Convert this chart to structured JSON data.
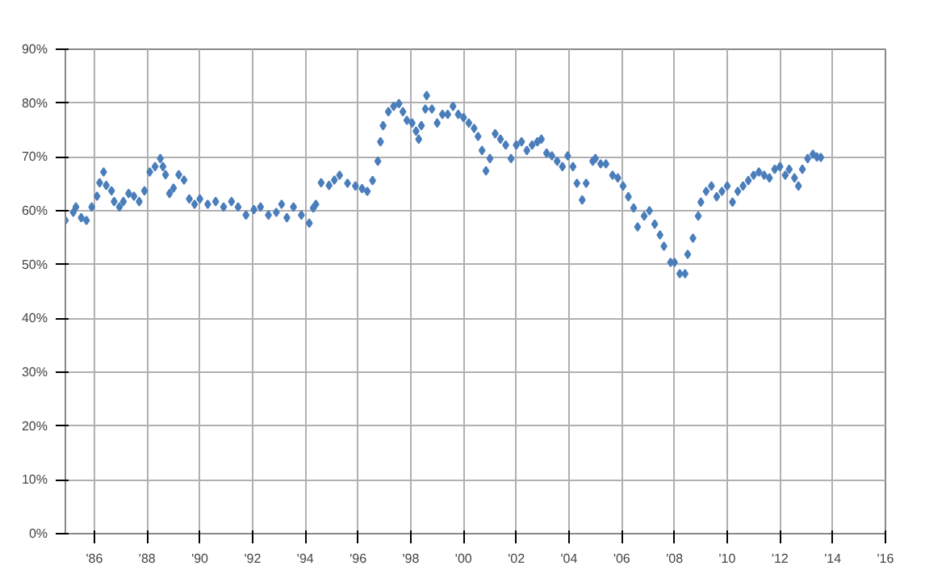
{
  "chart_data": {
    "type": "scatter",
    "marker": "diamond",
    "grid": true,
    "xlim": [
      1984.9,
      2016
    ],
    "xticks": [
      {
        "value": 1986,
        "label": "'86"
      },
      {
        "value": 1988,
        "label": "'88"
      },
      {
        "value": 1990,
        "label": "'90"
      },
      {
        "value": 1992,
        "label": "'92"
      },
      {
        "value": 1994,
        "label": "'94"
      },
      {
        "value": 1996,
        "label": "'96"
      },
      {
        "value": 1998,
        "label": "'98"
      },
      {
        "value": 2000,
        "label": "'00"
      },
      {
        "value": 2002,
        "label": "'02"
      },
      {
        "value": 2004,
        "label": "'04"
      },
      {
        "value": 2006,
        "label": "'06"
      },
      {
        "value": 2008,
        "label": "'08"
      },
      {
        "value": 2010,
        "label": "'10"
      },
      {
        "value": 2012,
        "label": "'12"
      },
      {
        "value": 2014,
        "label": "'14"
      },
      {
        "value": 2016,
        "label": "'16"
      }
    ],
    "ylim": [
      0,
      90
    ],
    "yticks": [
      {
        "value": 0,
        "label": "0%"
      },
      {
        "value": 10,
        "label": "10%"
      },
      {
        "value": 20,
        "label": "20%"
      },
      {
        "value": 30,
        "label": "30%"
      },
      {
        "value": 40,
        "label": "40%"
      },
      {
        "value": 50,
        "label": "50%"
      },
      {
        "value": 60,
        "label": "60%"
      },
      {
        "value": 70,
        "label": "70%"
      },
      {
        "value": 80,
        "label": "80%"
      },
      {
        "value": 90,
        "label": "90%"
      }
    ],
    "series": [
      {
        "color": "#4a7ebb",
        "x": [
          1984.9,
          1985.2,
          1985.3,
          1985.5,
          1985.7,
          1985.9,
          1986.1,
          1986.2,
          1986.35,
          1986.45,
          1986.65,
          1986.75,
          1986.95,
          1987.1,
          1987.3,
          1987.5,
          1987.7,
          1987.9,
          1988.1,
          1988.3,
          1988.5,
          1988.6,
          1988.7,
          1988.85,
          1989.0,
          1989.2,
          1989.4,
          1989.6,
          1989.8,
          1990.0,
          1990.3,
          1990.6,
          1990.9,
          1991.2,
          1991.45,
          1991.75,
          1992.05,
          1992.3,
          1992.6,
          1992.9,
          1993.1,
          1993.3,
          1993.55,
          1993.85,
          1994.15,
          1994.3,
          1994.4,
          1994.6,
          1994.9,
          1995.1,
          1995.3,
          1995.6,
          1995.9,
          1996.15,
          1996.35,
          1996.55,
          1996.75,
          1996.85,
          1996.95,
          1997.15,
          1997.35,
          1997.55,
          1997.7,
          1997.85,
          1998.05,
          1998.2,
          1998.3,
          1998.4,
          1998.55,
          1998.6,
          1998.8,
          1999.0,
          1999.2,
          1999.4,
          1999.6,
          1999.8,
          2000.0,
          2000.2,
          2000.4,
          2000.55,
          2000.7,
          2000.85,
          2001.0,
          2001.2,
          2001.4,
          2001.6,
          2001.8,
          2002.0,
          2002.2,
          2002.4,
          2002.6,
          2002.8,
          2002.95,
          2003.15,
          2003.35,
          2003.55,
          2003.75,
          2003.95,
          2004.15,
          2004.3,
          2004.5,
          2004.65,
          2004.9,
          2005.0,
          2005.2,
          2005.4,
          2005.65,
          2005.85,
          2006.05,
          2006.25,
          2006.45,
          2006.6,
          2006.85,
          2007.05,
          2007.25,
          2007.45,
          2007.6,
          2007.85,
          2008.0,
          2008.2,
          2008.4,
          2008.5,
          2008.7,
          2008.9,
          2009.0,
          2009.2,
          2009.4,
          2009.6,
          2009.8,
          2010.0,
          2010.2,
          2010.4,
          2010.6,
          2010.8,
          2011.0,
          2011.2,
          2011.4,
          2011.6,
          2011.8,
          2012.0,
          2012.2,
          2012.35,
          2012.55,
          2012.7,
          2012.85,
          2013.05,
          2013.25,
          2013.4,
          2013.55
        ],
        "values": [
          58.2,
          59.7,
          60.7,
          58.7,
          58.2,
          60.7,
          62.7,
          65.2,
          67.2,
          64.7,
          63.7,
          61.7,
          60.7,
          61.7,
          63.2,
          62.7,
          61.7,
          63.7,
          67.2,
          68.2,
          69.7,
          68.2,
          66.7,
          63.2,
          64.2,
          66.7,
          65.7,
          62.2,
          61.2,
          62.2,
          61.2,
          61.7,
          60.7,
          61.7,
          60.7,
          59.2,
          60.2,
          60.7,
          59.2,
          59.7,
          61.2,
          58.7,
          60.7,
          59.2,
          57.7,
          60.5,
          61.2,
          65.2,
          64.7,
          65.7,
          66.6,
          65.1,
          64.6,
          64.1,
          63.6,
          65.6,
          69.2,
          72.8,
          75.8,
          78.4,
          79.4,
          79.9,
          78.4,
          76.8,
          76.3,
          74.8,
          73.3,
          75.8,
          78.9,
          81.4,
          78.9,
          76.3,
          77.9,
          77.9,
          79.4,
          77.9,
          77.3,
          76.3,
          75.3,
          73.8,
          71.2,
          67.4,
          69.7,
          74.3,
          73.3,
          72.2,
          69.7,
          72.2,
          72.8,
          71.2,
          72.2,
          72.8,
          73.3,
          70.7,
          70.2,
          69.2,
          68.2,
          70.2,
          68.2,
          65.1,
          62.0,
          65.1,
          69.2,
          69.7,
          68.7,
          68.7,
          66.6,
          66.1,
          64.6,
          62.6,
          60.5,
          57.0,
          59.0,
          60.0,
          57.5,
          55.5,
          53.4,
          50.4,
          50.4,
          48.3,
          48.3,
          51.9,
          54.9,
          59.0,
          61.6,
          63.6,
          64.6,
          62.6,
          63.6,
          64.6,
          61.6,
          63.6,
          64.6,
          65.6,
          66.6,
          67.2,
          66.6,
          66.1,
          67.7,
          68.2,
          66.6,
          67.7,
          66.1,
          64.6,
          67.7,
          69.7,
          70.5,
          70.0,
          69.9
        ]
      }
    ]
  }
}
